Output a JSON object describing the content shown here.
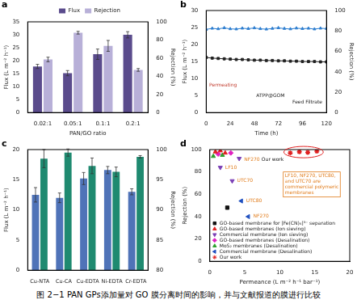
{
  "caption": "图 2−1 PAN GPs添加量对 GO 膜分离时间的影响，并与文献报道的膜进行比较",
  "chart_data": [
    {
      "panel": "a",
      "type": "bar",
      "categories": [
        "0.02:1",
        "0.05:1",
        "0.1:1",
        "0.2:1"
      ],
      "x_label": "PAN/GO ratio",
      "y_label": "Flux (L m⁻² h⁻¹)",
      "y2_label": "Rejection (%)",
      "ylim": [
        0,
        35
      ],
      "yticks": [
        0,
        5,
        10,
        15,
        20,
        25,
        30,
        35
      ],
      "y2lim": [
        0,
        100
      ],
      "y2ticks": [
        0,
        20,
        40,
        60,
        80,
        100
      ],
      "grid": false,
      "legend": "top",
      "series": [
        {
          "name": "Flux",
          "color": "#5a4b8c",
          "values": [
            17.8,
            15.2,
            22.5,
            30.0
          ],
          "errors": [
            0.8,
            1.0,
            2.0,
            1.2
          ]
        },
        {
          "name": "Rejection",
          "color": "#b8b0d8",
          "axis": "y2",
          "values": [
            58.5,
            88,
            73.5,
            47
          ],
          "errors": [
            2.5,
            1.5,
            6,
            1.5
          ]
        }
      ]
    },
    {
      "panel": "b",
      "type": "line",
      "x": [
        0,
        6,
        12,
        18,
        24,
        30,
        36,
        42,
        48,
        54,
        60,
        66,
        72,
        78,
        84,
        90,
        96,
        102,
        108,
        114,
        120
      ],
      "x_label": "Time (h)",
      "y_label": "Flux (L m⁻² h⁻¹)",
      "y2_label": "Rejection (%)",
      "xlim": [
        0,
        120
      ],
      "xticks": [
        0,
        24,
        48,
        72,
        96,
        120
      ],
      "ylim": [
        0,
        30
      ],
      "yticks": [
        0,
        5,
        10,
        15,
        20,
        25,
        30
      ],
      "y2lim": [
        0,
        100
      ],
      "y2ticks": [
        0,
        20,
        40,
        60,
        80,
        100
      ],
      "grid": false,
      "series": [
        {
          "name": "Flux",
          "color": "#222222",
          "marker": "square",
          "values": [
            16.2,
            16.0,
            15.9,
            15.8,
            15.7,
            15.6,
            15.6,
            15.5,
            15.4,
            15.4,
            15.3,
            15.3,
            15.2,
            15.2,
            15.1,
            15.1,
            15.0,
            15.0,
            15.0,
            14.9,
            14.9
          ]
        },
        {
          "name": "Rejection",
          "color": "#2f7fd0",
          "marker": "triangle",
          "axis": "y2",
          "values": [
            81.5,
            82.5,
            82,
            83,
            82,
            81.8,
            82.6,
            82.2,
            82.9,
            82.1,
            81.7,
            82.4,
            83,
            82.3,
            81.9,
            82.7,
            82.2,
            82.5,
            81.8,
            82.6,
            82.3
          ]
        }
      ],
      "annotations": [
        {
          "text": "Permeating",
          "x": 3,
          "y": 8,
          "color": "#c0392b"
        },
        {
          "text": "ATPP@GOM",
          "x": 50,
          "y": 5,
          "color": "#222222"
        },
        {
          "text": "Feed",
          "x": 86,
          "y": 3,
          "color": "#222222"
        },
        {
          "text": "Filtrate",
          "x": 99,
          "y": 3,
          "color": "#222222"
        }
      ]
    },
    {
      "panel": "c",
      "type": "bar",
      "categories": [
        "Cu-NTA",
        "Cu-CA",
        "Cu-EDTA",
        "Ni-EDTA",
        "Cr-EDTA"
      ],
      "y_label": "Flux (L m⁻² h⁻¹)",
      "y2_label": "Rejection (%)",
      "ylim": [
        0,
        20
      ],
      "yticks": [
        0,
        5,
        10,
        15,
        20
      ],
      "y2lim": [
        80,
        100
      ],
      "y2ticks": [
        80,
        85,
        90,
        95,
        100
      ],
      "grid": false,
      "series": [
        {
          "name": "Flux",
          "color": "#4f73b8",
          "values": [
            12.5,
            12.0,
            15.2,
            16.6,
            13.0
          ],
          "errors": [
            1.2,
            0.8,
            1.0,
            0.6,
            0.5
          ]
        },
        {
          "name": "Rejection",
          "color": "#1f8a70",
          "axis": "y2",
          "values": [
            98.5,
            99.5,
            97.3,
            96.3,
            98.8
          ],
          "errors": [
            1.5,
            0.6,
            1.3,
            0.8,
            0.2
          ]
        }
      ]
    },
    {
      "panel": "d",
      "type": "scatter",
      "x_label": "Permeance (L m⁻² h⁻¹ bar⁻¹)",
      "y_label": "Rejection (%)",
      "xlim": [
        0,
        20
      ],
      "xticks": [
        0,
        5,
        10,
        15,
        20
      ],
      "ylim": [
        0,
        100
      ],
      "yticks": [
        0,
        20,
        40,
        60,
        80,
        100
      ],
      "grid": false,
      "legend": "lower left",
      "series": [
        {
          "name": "GO-based membrane for [Fe(CN)₆]³⁻ separation",
          "color": "#111111",
          "marker": "square",
          "x": [
            2.5
          ],
          "values": [
            48
          ]
        },
        {
          "name": "GO-based membranes (Ion sieving)",
          "color": "#e02020",
          "marker": "triangle",
          "x": [
            0.8,
            1.5,
            2.2
          ],
          "values": [
            98,
            99,
            97
          ]
        },
        {
          "name": "Commercial membrane (Ion sieving)",
          "color": "#7b3fb5",
          "marker": "triangle_down",
          "x": [
            1.5,
            4.2,
            3.2
          ],
          "values": [
            84,
            92,
            72
          ]
        },
        {
          "name": "GO-based membranes (Desalination)",
          "color": "#e020c0",
          "marker": "diamond",
          "x": [
            1.2,
            3.0
          ],
          "values": [
            96,
            97
          ]
        },
        {
          "name": "MoS₂ membranes (Desalination)",
          "color": "#2ca02c",
          "marker": "triangle",
          "x": [
            0.5,
            1.8
          ],
          "values": [
            94,
            95
          ]
        },
        {
          "name": "Commercial membrane (Desalination)",
          "color": "#1f4fbf",
          "marker": "triangle_left",
          "x": [
            4.5,
            5.5
          ],
          "values": [
            54,
            40
          ]
        },
        {
          "name": "Our work",
          "color": "#e02020",
          "marker": "star",
          "x": [
            11.5,
            12.8,
            14.0,
            15.3
          ],
          "values": [
            97,
            98,
            97.5,
            98.5
          ]
        }
      ],
      "annotations": [
        {
          "text": "LF10",
          "x": 2.2,
          "y": 84,
          "color": "#e07b1a"
        },
        {
          "text": "NF270",
          "x": 4.9,
          "y": 91,
          "color": "#e07b1a"
        },
        {
          "text": "UTC70",
          "x": 3.9,
          "y": 72,
          "color": "#e07b1a"
        },
        {
          "text": "UTC80",
          "x": 5.2,
          "y": 54,
          "color": "#e07b1a"
        },
        {
          "text": "NF270",
          "x": 6.2,
          "y": 40,
          "color": "#e07b1a"
        },
        {
          "text": "Our work",
          "x": 7.4,
          "y": 91,
          "color": "#111111"
        }
      ],
      "note": {
        "text": "LF10, NF270, UTC80, and UTC70 are commercial polymeric membranes",
        "x": 10.5,
        "y": 80,
        "color": "#e07b1a"
      }
    }
  ]
}
